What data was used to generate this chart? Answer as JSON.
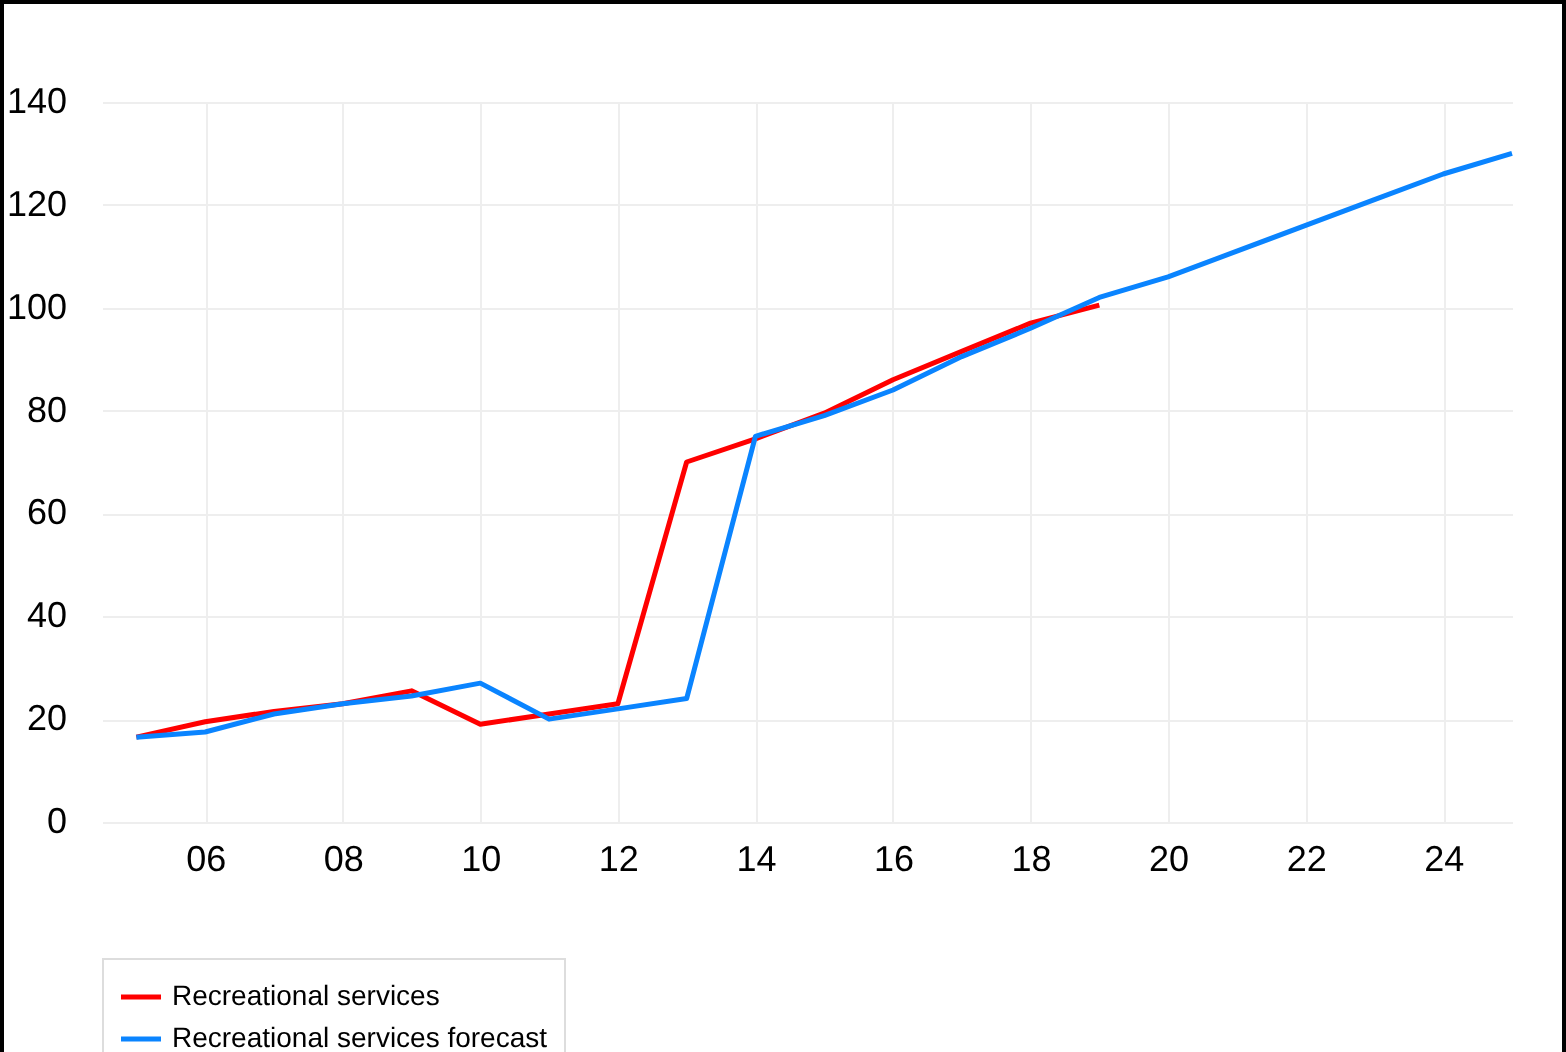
{
  "chart_data": {
    "type": "line",
    "x": [
      2005,
      2006,
      2007,
      2008,
      2009,
      2010,
      2011,
      2012,
      2013,
      2014,
      2015,
      2016,
      2017,
      2018,
      2019,
      2020,
      2021,
      2022,
      2023,
      2024,
      2025
    ],
    "series": [
      {
        "name": "Recreational services",
        "color": "#ff0000",
        "values": [
          16.5,
          19.5,
          21.5,
          23,
          25.5,
          19,
          21,
          23,
          70,
          74.5,
          79.5,
          86,
          91.5,
          97,
          100.5,
          null,
          null,
          null,
          null,
          null,
          null
        ]
      },
      {
        "name": "Recreational services forecast",
        "color": "#0a84ff",
        "values": [
          16.5,
          17.5,
          21,
          23,
          24.5,
          27,
          20,
          22,
          24,
          75,
          79,
          84,
          90.5,
          96,
          102,
          106,
          111,
          116,
          121,
          126,
          130
        ]
      }
    ],
    "xlim": [
      2004.5,
      2025
    ],
    "xticks": [
      {
        "value": 2006,
        "label": "06"
      },
      {
        "value": 2008,
        "label": "08"
      },
      {
        "value": 2010,
        "label": "10"
      },
      {
        "value": 2012,
        "label": "12"
      },
      {
        "value": 2014,
        "label": "14"
      },
      {
        "value": 2016,
        "label": "16"
      },
      {
        "value": 2018,
        "label": "18"
      },
      {
        "value": 2020,
        "label": "20"
      },
      {
        "value": 2022,
        "label": "22"
      },
      {
        "value": 2024,
        "label": "24"
      }
    ],
    "ylim": [
      0,
      140
    ],
    "yticks": [
      0,
      20,
      40,
      60,
      80,
      100,
      120,
      140
    ],
    "grid": true,
    "legend": "bottom",
    "marker": "none",
    "line_style": "solid"
  }
}
